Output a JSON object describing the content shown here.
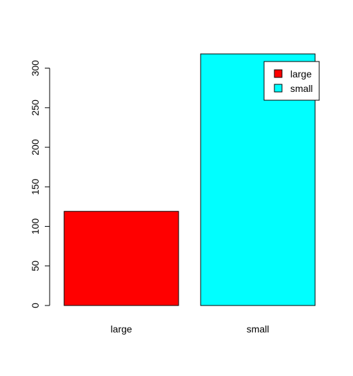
{
  "chart_data": {
    "type": "bar",
    "categories": [
      "large",
      "small"
    ],
    "values": [
      119,
      318
    ],
    "colors": [
      "#ff0000",
      "#00ffff"
    ],
    "ylim": [
      0,
      318
    ],
    "yticks": [
      0,
      50,
      100,
      150,
      200,
      250,
      300
    ],
    "grid": false,
    "legend": {
      "position": "top-right",
      "entries": [
        "large",
        "small"
      ]
    }
  }
}
